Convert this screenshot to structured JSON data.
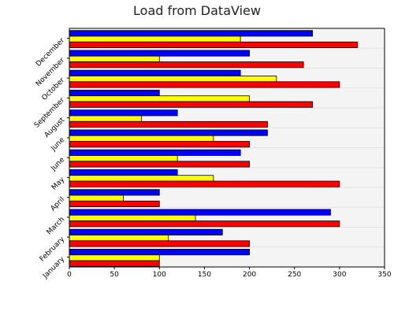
{
  "chart_data": {
    "type": "bar",
    "orientation": "horizontal",
    "title": "Load from DataView",
    "xlabel": "",
    "ylabel": "",
    "categories": [
      "January",
      "February",
      "March",
      "April",
      "May",
      "June",
      "June",
      "August",
      "September",
      "October",
      "November",
      "December"
    ],
    "xlim": [
      0,
      350
    ],
    "x_ticks": [
      "0",
      "50",
      "100",
      "150",
      "200",
      "250",
      "300",
      "350"
    ],
    "grid": true,
    "legend": "none",
    "series": [
      {
        "color": "#ff0000",
        "values": [
          100,
          200,
          300,
          100,
          300,
          200,
          200,
          220,
          270,
          300,
          260,
          320
        ]
      },
      {
        "color": "#ffff00",
        "values": [
          100,
          110,
          140,
          60,
          160,
          120,
          160,
          80,
          200,
          230,
          100,
          190
        ]
      },
      {
        "color": "#0000ff",
        "values": [
          200,
          170,
          290,
          100,
          120,
          190,
          220,
          120,
          100,
          190,
          200,
          270
        ]
      }
    ]
  }
}
